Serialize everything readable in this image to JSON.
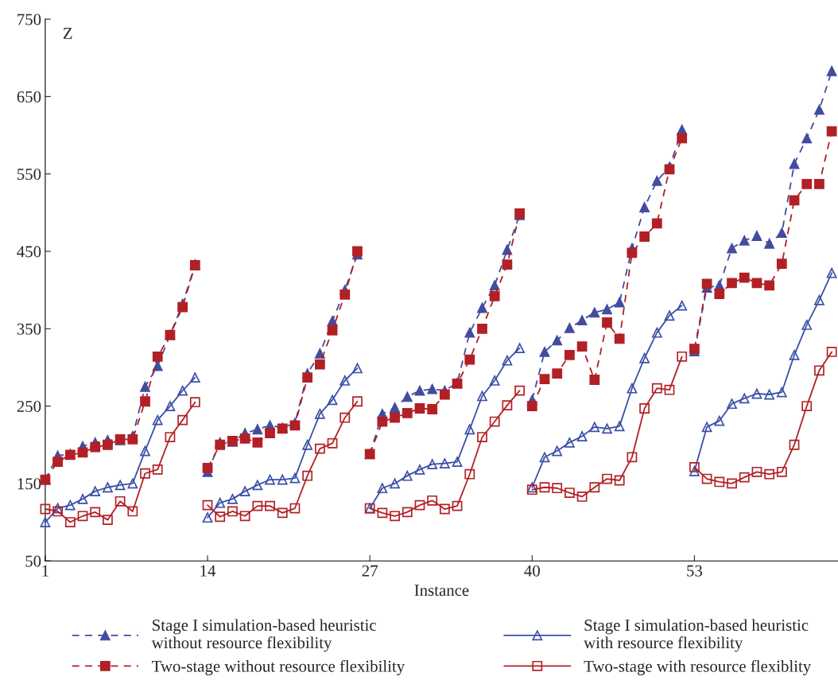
{
  "chart_data": {
    "type": "line",
    "xlabel": "Instance",
    "ylabel": "Z",
    "xlim": [
      1,
      64.5
    ],
    "xticks": [
      1,
      14,
      27,
      40,
      53
    ],
    "ylim": [
      50,
      750
    ],
    "yticks": [
      50,
      150,
      250,
      350,
      450,
      550,
      650,
      750
    ],
    "grid": false,
    "legend": "bottom",
    "x": [
      1,
      2,
      3,
      4,
      5,
      6,
      7,
      8,
      9,
      10,
      11,
      12,
      13,
      null,
      14,
      15,
      16,
      17,
      18,
      19,
      20,
      21,
      22,
      23,
      24,
      25,
      26,
      null,
      27,
      28,
      29,
      30,
      31,
      32,
      33,
      34,
      35,
      36,
      37,
      38,
      39,
      null,
      40,
      41,
      42,
      43,
      44,
      45,
      46,
      47,
      48,
      49,
      50,
      51,
      52,
      null,
      53,
      54,
      55,
      56,
      57,
      58,
      59,
      60,
      61,
      62,
      63,
      64
    ],
    "series": [
      {
        "name": "Stage I simulation-based heuristic\nwithout resource flexibility",
        "color": "#444ca0",
        "marker": "triangle",
        "line_style": "dashed",
        "values": [
          155,
          186,
          188,
          198,
          203,
          206,
          206,
          211,
          275,
          302,
          342,
          382,
          433,
          null,
          165,
          203,
          204,
          215,
          220,
          225,
          222,
          228,
          292,
          318,
          360,
          400,
          446,
          null,
          188,
          240,
          248,
          262,
          270,
          272,
          270,
          280,
          345,
          377,
          406,
          452,
          497,
          null,
          258,
          320,
          335,
          351,
          361,
          371,
          375,
          384,
          454,
          507,
          541,
          559,
          607,
          null,
          321,
          403,
          406,
          454,
          464,
          470,
          460,
          474,
          563,
          596,
          633,
          683
        ]
      },
      {
        "name": "Two-stage without resource flexibility",
        "color": "#b22025",
        "marker": "square",
        "line_style": "dashed",
        "values": [
          155,
          178,
          187,
          190,
          197,
          200,
          207,
          207,
          256,
          314,
          342,
          378,
          432,
          null,
          170,
          200,
          205,
          208,
          203,
          215,
          221,
          225,
          287,
          304,
          348,
          394,
          450,
          null,
          188,
          230,
          235,
          241,
          247,
          246,
          265,
          279,
          310,
          350,
          392,
          433,
          499,
          null,
          250,
          285,
          292,
          316,
          327,
          284,
          358,
          337,
          448,
          469,
          486,
          556,
          596,
          null,
          324,
          408,
          395,
          409,
          416,
          409,
          406,
          434,
          516,
          537,
          537,
          605
        ]
      },
      {
        "name": "Stage I simulation-based heuristic\nwith resource flexibility",
        "color": "#3a4fa8",
        "marker": "triangle",
        "line_style": "solid",
        "values": [
          100,
          118,
          122,
          130,
          140,
          145,
          148,
          150,
          192,
          232,
          250,
          270,
          287,
          null,
          106,
          125,
          130,
          140,
          148,
          155,
          155,
          157,
          200,
          240,
          258,
          283,
          299,
          null,
          118,
          144,
          150,
          160,
          168,
          175,
          176,
          178,
          220,
          263,
          283,
          309,
          325,
          null,
          145,
          184,
          192,
          203,
          211,
          223,
          221,
          224,
          273,
          312,
          345,
          367,
          380,
          null,
          166,
          223,
          231,
          253,
          260,
          266,
          265,
          268,
          316,
          355,
          387,
          422
        ]
      },
      {
        "name": "Two-stage with resource flexiblity",
        "color": "#b22025",
        "marker": "square",
        "line_style": "solid",
        "values": [
          117,
          114,
          100,
          108,
          113,
          103,
          127,
          114,
          163,
          168,
          210,
          232,
          255,
          null,
          122,
          107,
          114,
          108,
          121,
          121,
          112,
          118,
          160,
          195,
          202,
          235,
          256,
          null,
          118,
          112,
          108,
          113,
          122,
          128,
          117,
          121,
          162,
          210,
          230,
          251,
          270,
          null,
          142,
          145,
          144,
          138,
          133,
          145,
          156,
          154,
          184,
          247,
          273,
          271,
          314,
          null,
          171,
          156,
          152,
          150,
          158,
          165,
          162,
          165,
          200,
          250,
          296,
          320
        ]
      }
    ]
  }
}
